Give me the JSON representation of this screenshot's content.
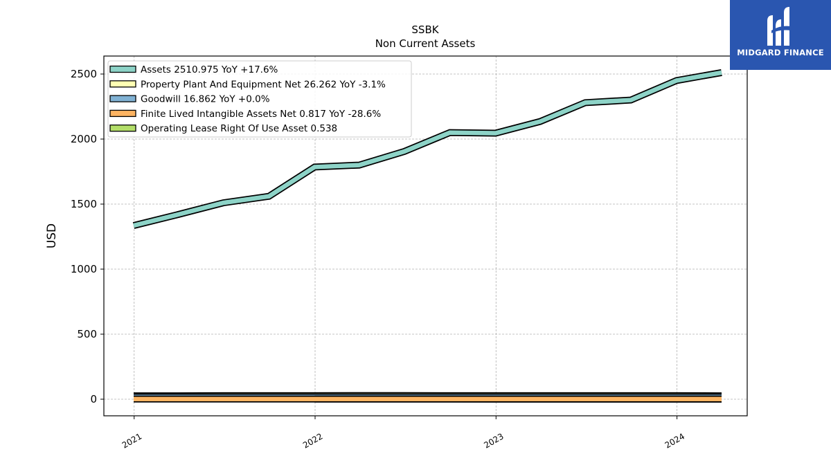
{
  "chart_data": {
    "type": "area",
    "title": "SSBK",
    "subtitle": "Non Current  Assets",
    "ylabel": "USD",
    "xlabel": "",
    "ylim": [
      -125,
      2645
    ],
    "yticks": [
      0,
      500,
      1000,
      1500,
      2000,
      2500
    ],
    "xticks": [
      "2021",
      "2022",
      "2023",
      "2024"
    ],
    "grid": true,
    "legend_position": "top-left",
    "x": [
      "2020-12-31",
      "2021-03-31",
      "2021-06-30",
      "2021-09-30",
      "2021-12-31",
      "2022-03-31",
      "2022-06-30",
      "2022-09-30",
      "2022-12-31",
      "2023-03-31",
      "2023-06-30",
      "2023-09-30",
      "2023-12-31",
      "2024-03-31"
    ],
    "series": [
      {
        "name": "Assets",
        "legend_label": "Assets  2510.975 YoY +17.6%",
        "color": "#8dd3c7",
        "values": [
          1335,
          1420,
          1510,
          1560,
          1785,
          1800,
          1905,
          2050,
          2045,
          2135,
          2280,
          2300,
          2450,
          2511
        ]
      },
      {
        "name": "Property Plant And Equipment Net",
        "legend_label": "Property Plant And Equipment Net  26.262 YoY -3.1%",
        "color": "#ffffb3",
        "values": [
          26,
          26,
          27,
          27,
          27,
          28,
          28,
          27,
          27,
          27,
          27,
          27,
          27,
          26.262
        ]
      },
      {
        "name": "Goodwill",
        "legend_label": "Goodwill  16.862 YoY +0.0%",
        "color": "#80b1d3",
        "values": [
          16.862,
          16.862,
          16.862,
          16.862,
          16.862,
          16.862,
          16.862,
          16.862,
          16.862,
          16.862,
          16.862,
          16.862,
          16.862,
          16.862
        ]
      },
      {
        "name": "Finite Lived Intangible Assets Net",
        "legend_label": "Finite Lived Intangible Assets Net  0.817 YoY -28.6%",
        "color": "#fdb462",
        "values": [
          1.8,
          1.7,
          1.6,
          1.5,
          1.4,
          1.3,
          1.3,
          1.2,
          1.1,
          1.1,
          1.0,
          0.9,
          0.9,
          0.817
        ]
      },
      {
        "name": "Operating Lease Right Of Use Asset",
        "legend_label": "Operating Lease Right Of Use Asset  0.538",
        "color": "#b3de69",
        "values": [
          null,
          null,
          null,
          null,
          0.9,
          0.9,
          0.8,
          0.8,
          0.7,
          0.7,
          0.7,
          0.6,
          0.6,
          0.538
        ]
      }
    ]
  },
  "logo": {
    "text": "MIDGARD FINANCE",
    "bg_color": "#2a56b0"
  }
}
